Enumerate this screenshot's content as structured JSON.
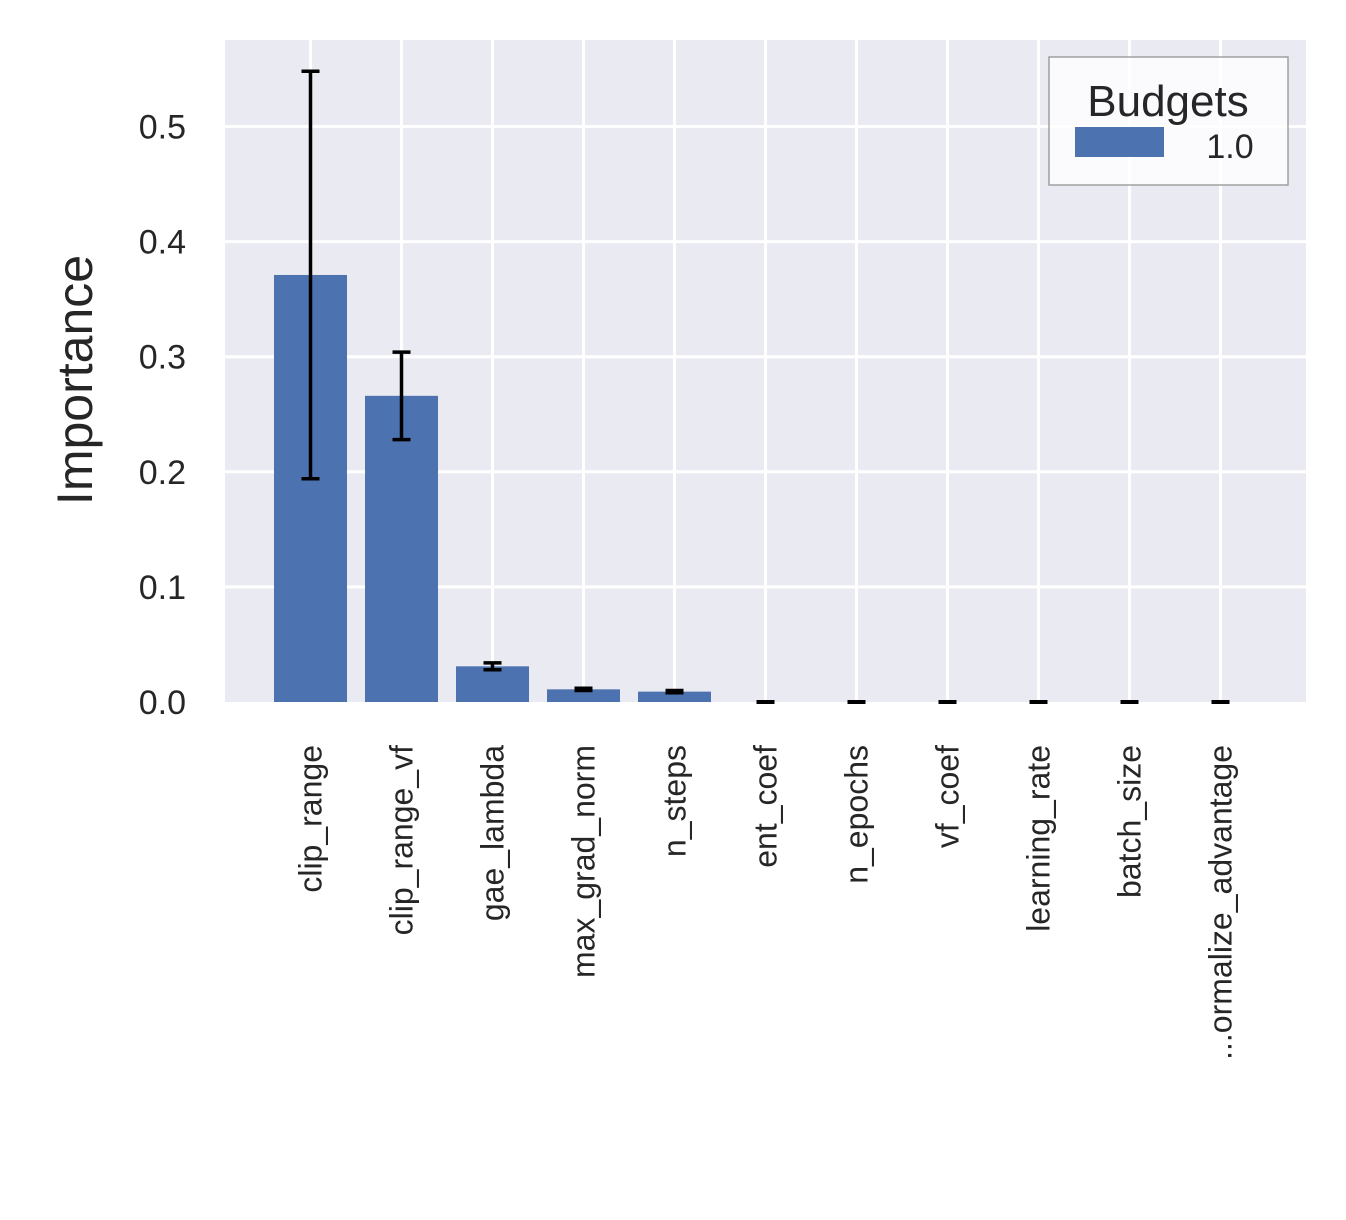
{
  "chart_data": {
    "type": "bar",
    "ylabel": "Importance",
    "xlabel": "",
    "ylim": [
      0,
      0.575
    ],
    "yticks": [
      0.0,
      0.1,
      0.2,
      0.3,
      0.4,
      0.5
    ],
    "ytick_labels": [
      "0.0",
      "0.1",
      "0.2",
      "0.3",
      "0.4",
      "0.5"
    ],
    "grid": true,
    "categories": [
      "clip_range",
      "clip_range_vf",
      "gae_lambda",
      "max_grad_norm",
      "n_steps",
      "ent_coef",
      "n_epochs",
      "vf_coef",
      "learning_rate",
      "batch_size",
      "...ormalize_advantage"
    ],
    "series": [
      {
        "name": "1.0",
        "color": "#4c72b0",
        "values": [
          0.371,
          0.266,
          0.031,
          0.011,
          0.009,
          0.0,
          0.0,
          0.0,
          0.0,
          0.0,
          0.0
        ],
        "errors": [
          0.177,
          0.038,
          0.003,
          0.001,
          0.001,
          0.0,
          0.0,
          0.0,
          0.0,
          0.0,
          0.0
        ]
      }
    ],
    "legend": {
      "title": "Budgets",
      "position": "top-right"
    },
    "colors": {
      "background": "#eaeaf2",
      "grid": "#ffffff",
      "bar": "#4c72b0",
      "error_bar": "#000000"
    }
  }
}
